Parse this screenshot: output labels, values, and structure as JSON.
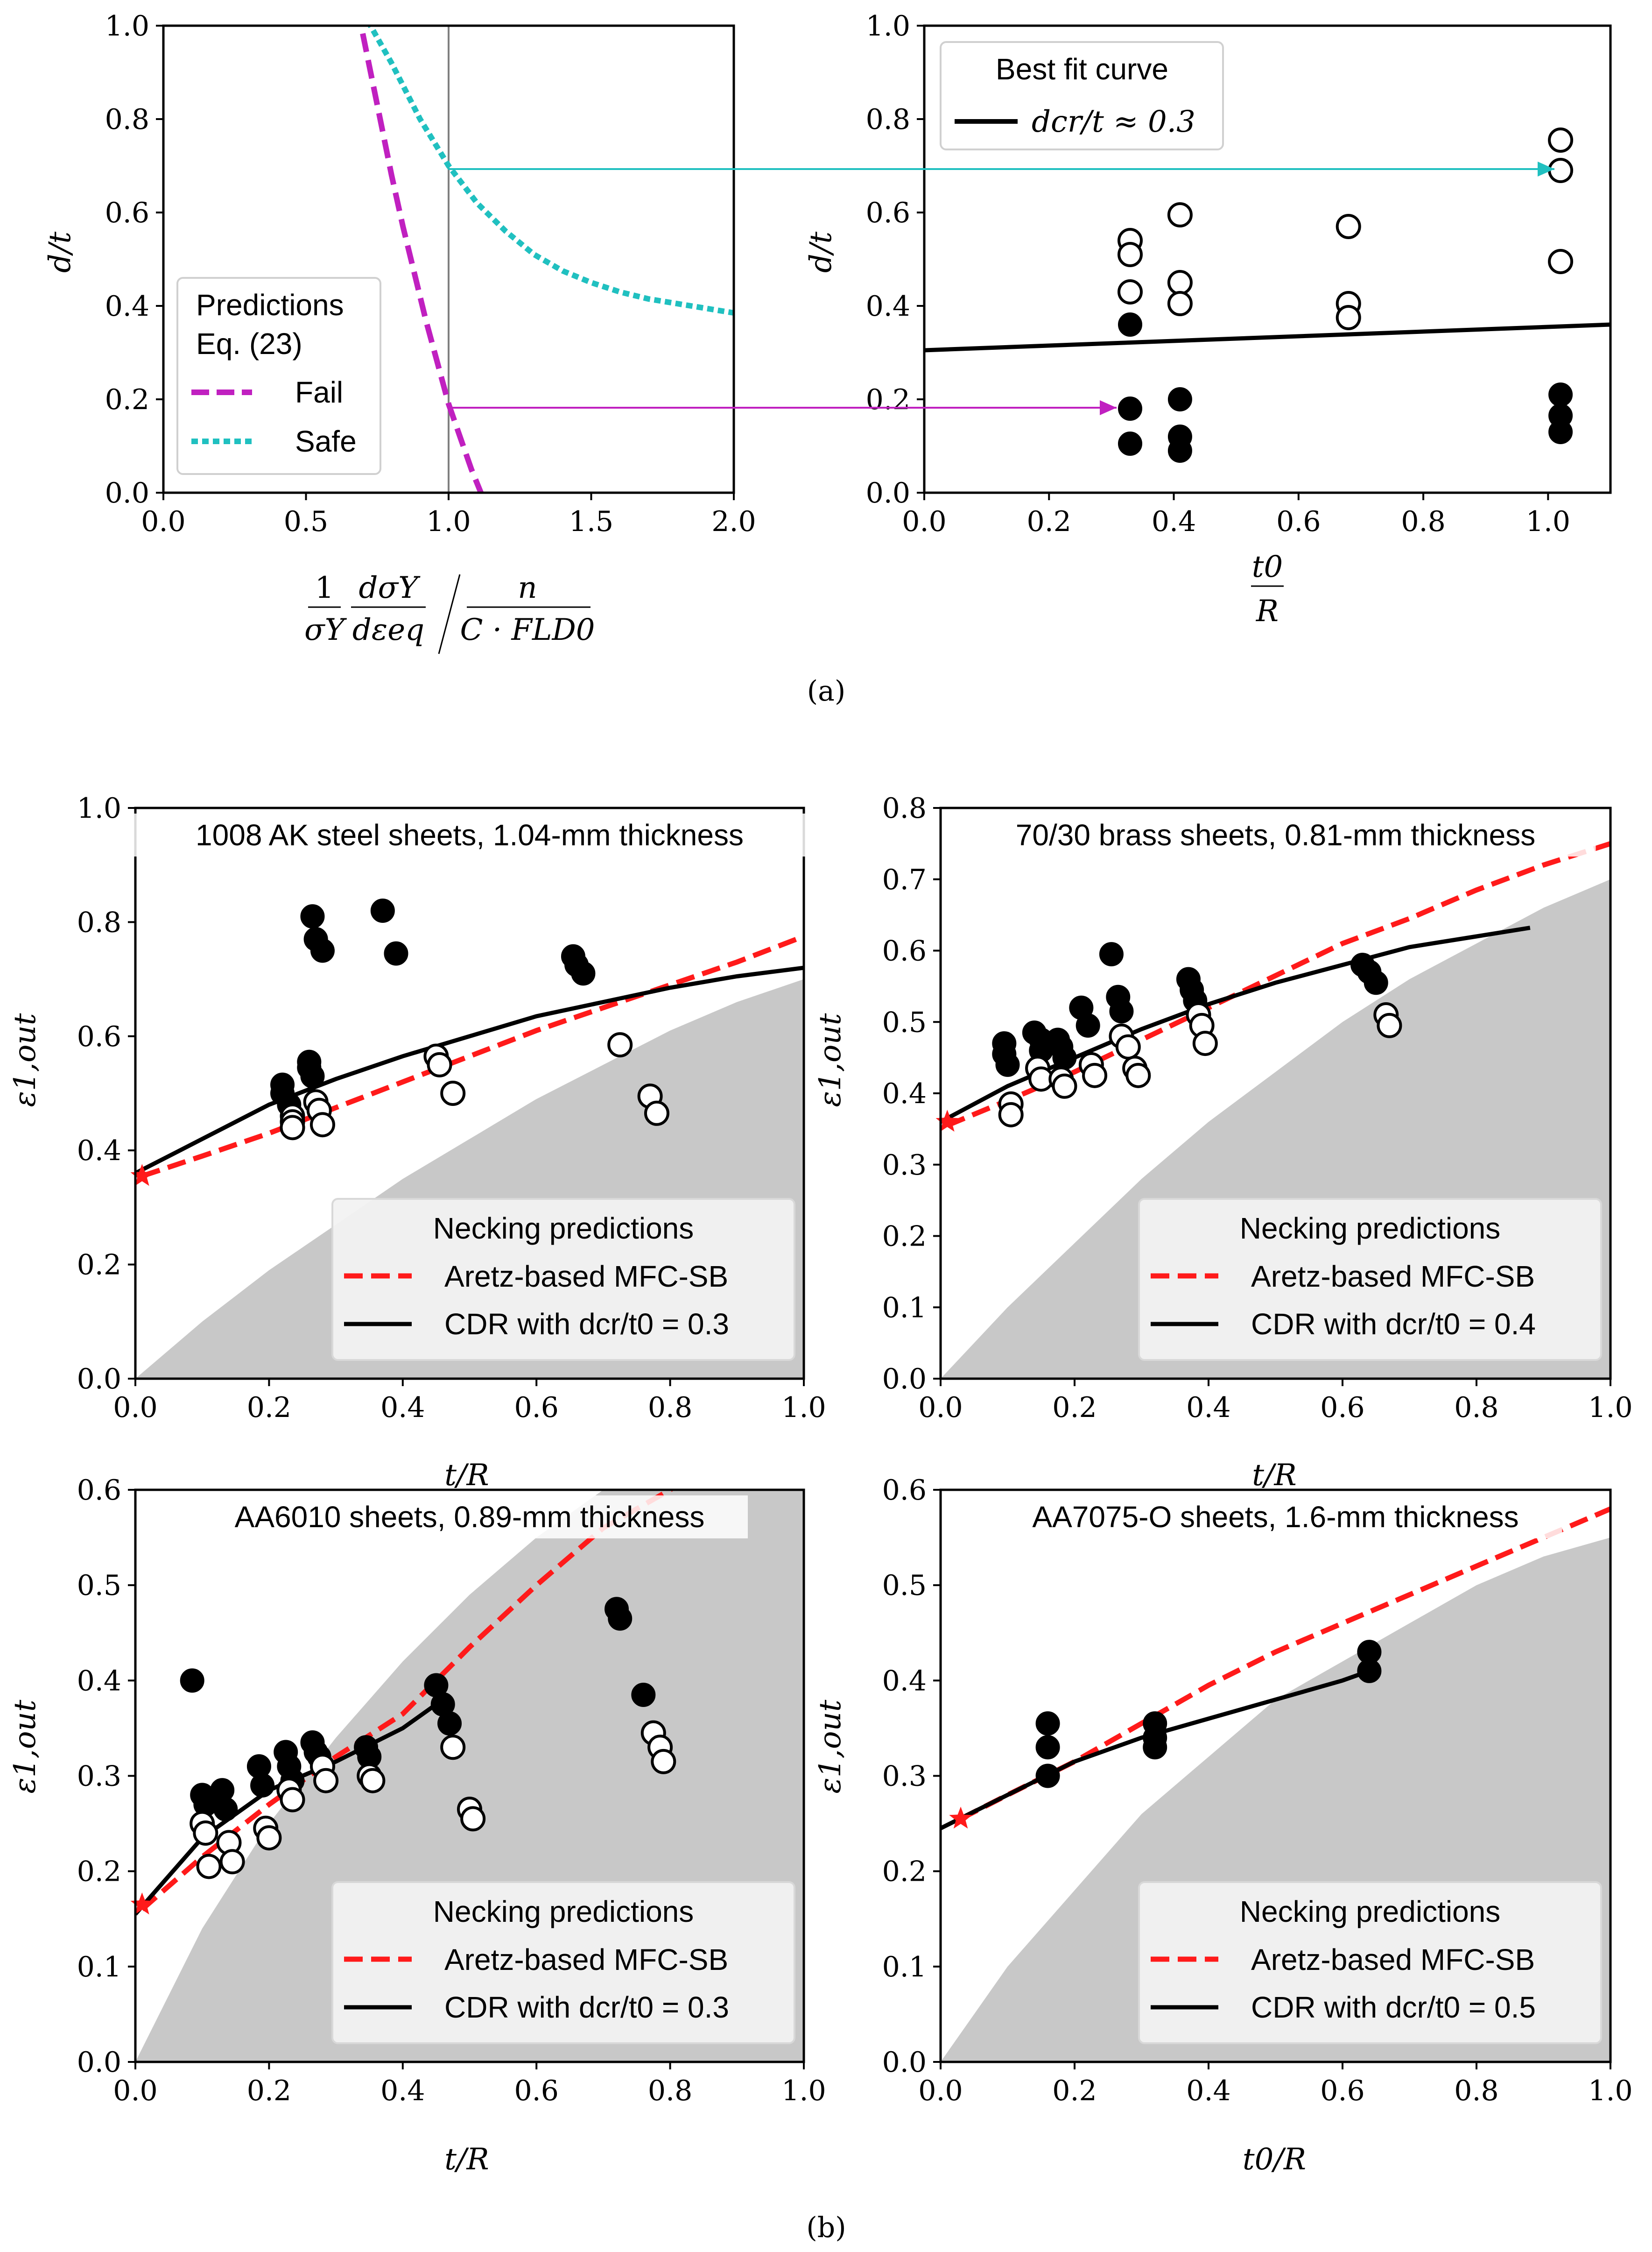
{
  "captions": {
    "a": "(a)",
    "b": "(b)"
  },
  "colors": {
    "fail": "#c020c0",
    "safe": "#20c0c0",
    "red": "#ff1a1a",
    "fill": "#c8c8c8"
  },
  "chart_data": [
    {
      "id": "a1",
      "type": "line",
      "xlabel": {
        "one": "1",
        "sigmaY": "σY",
        "dsig": "dσY",
        "deps": "dεeq",
        "n": "n",
        "den": "C · FLD0"
      },
      "ylabel": "d/t",
      "xlim": [
        0,
        2
      ],
      "ylim": [
        0,
        1
      ],
      "xticks": [
        "0.0",
        "0.5",
        "1.0",
        "1.5",
        "2.0"
      ],
      "yticks": [
        "0.0",
        "0.2",
        "0.4",
        "0.6",
        "0.8",
        "1.0"
      ],
      "series": [
        {
          "name": "Fail",
          "style": "dashed",
          "x": [
            0.68,
            0.72,
            0.76,
            0.8,
            0.84,
            0.88,
            0.92,
            0.96,
            1.0,
            1.04,
            1.08,
            1.12
          ],
          "y": [
            1.04,
            0.92,
            0.8,
            0.68,
            0.57,
            0.47,
            0.37,
            0.28,
            0.19,
            0.12,
            0.05,
            -0.01
          ]
        },
        {
          "name": "Safe",
          "style": "dotted",
          "x": [
            0.68,
            0.8,
            0.9,
            1.0,
            1.1,
            1.2,
            1.3,
            1.4,
            1.5,
            1.6,
            1.7,
            1.8,
            1.9,
            2.0
          ],
          "y": [
            1.05,
            0.92,
            0.8,
            0.7,
            0.62,
            0.56,
            0.51,
            0.475,
            0.45,
            0.43,
            0.415,
            0.405,
            0.395,
            0.385
          ]
        }
      ],
      "vline": 1.0,
      "legend": {
        "title": "Predictions",
        "subtitle": "Eq. (23)",
        "entries": [
          "Fail",
          "Safe"
        ]
      }
    },
    {
      "id": "a2",
      "type": "scatter",
      "xlabel": {
        "num": "t0",
        "den": "R"
      },
      "ylabel": "d/t",
      "xlim": [
        0,
        1.1
      ],
      "ylim": [
        0,
        1
      ],
      "xticks": [
        "0.0",
        "0.2",
        "0.4",
        "0.6",
        "0.8",
        "1.0"
      ],
      "yticks": [
        "0.0",
        "0.2",
        "0.4",
        "0.6",
        "0.8",
        "1.0"
      ],
      "fit": {
        "x": [
          0,
          1.1
        ],
        "y": [
          0.305,
          0.36
        ]
      },
      "failed": [
        [
          0.33,
          0.36
        ],
        [
          0.33,
          0.18
        ],
        [
          0.33,
          0.105
        ],
        [
          0.41,
          0.2
        ],
        [
          0.41,
          0.12
        ],
        [
          0.41,
          0.09
        ],
        [
          1.02,
          0.21
        ],
        [
          1.02,
          0.165
        ],
        [
          1.02,
          0.13
        ]
      ],
      "safe": [
        [
          0.33,
          0.54
        ],
        [
          0.33,
          0.51
        ],
        [
          0.33,
          0.43
        ],
        [
          0.41,
          0.595
        ],
        [
          0.41,
          0.45
        ],
        [
          0.41,
          0.405
        ],
        [
          0.68,
          0.57
        ],
        [
          0.68,
          0.405
        ],
        [
          0.68,
          0.375
        ],
        [
          1.02,
          0.755
        ],
        [
          1.02,
          0.69
        ],
        [
          1.02,
          0.495
        ]
      ],
      "legend": {
        "title": "Best fit curve",
        "entry": "dcr/t ≈ 0.3"
      }
    },
    {
      "id": "b1",
      "type": "scatter",
      "title": "1008 AK steel sheets, 1.04-mm thickness",
      "xlabel": "t/R",
      "ylabel": "ε1,out",
      "xlim": [
        0,
        1
      ],
      "ylim": [
        0,
        1
      ],
      "xticks": [
        "0.0",
        "0.2",
        "0.4",
        "0.6",
        "0.8",
        "1.0"
      ],
      "yticks": [
        "0.0",
        "0.2",
        "0.4",
        "0.6",
        "0.8",
        "1.0"
      ],
      "shade": {
        "x": [
          0,
          0.1,
          0.2,
          0.3,
          0.4,
          0.5,
          0.6,
          0.7,
          0.8,
          0.9,
          1.0
        ],
        "y": [
          0,
          0.1,
          0.19,
          0.27,
          0.35,
          0.42,
          0.49,
          0.55,
          0.61,
          0.66,
          0.7
        ]
      },
      "red": {
        "x": [
          0.01,
          0.1,
          0.2,
          0.3,
          0.4,
          0.5,
          0.6,
          0.7,
          0.8,
          0.9,
          1.0
        ],
        "y": [
          0.355,
          0.39,
          0.43,
          0.475,
          0.52,
          0.565,
          0.61,
          0.65,
          0.69,
          0.73,
          0.775
        ]
      },
      "black": {
        "x": [
          0.0,
          0.1,
          0.2,
          0.3,
          0.4,
          0.5,
          0.6,
          0.7,
          0.8,
          0.9,
          1.0
        ],
        "y": [
          0.36,
          0.42,
          0.48,
          0.525,
          0.565,
          0.6,
          0.635,
          0.66,
          0.685,
          0.705,
          0.72
        ]
      },
      "star": [
        0.01,
        0.355
      ],
      "failed": [
        [
          0.22,
          0.515
        ],
        [
          0.22,
          0.5
        ],
        [
          0.23,
          0.48
        ],
        [
          0.26,
          0.555
        ],
        [
          0.26,
          0.545
        ],
        [
          0.265,
          0.53
        ],
        [
          0.265,
          0.81
        ],
        [
          0.27,
          0.77
        ],
        [
          0.28,
          0.75
        ],
        [
          0.37,
          0.82
        ],
        [
          0.39,
          0.745
        ],
        [
          0.655,
          0.74
        ],
        [
          0.66,
          0.725
        ],
        [
          0.67,
          0.71
        ]
      ],
      "safe": [
        [
          0.235,
          0.46
        ],
        [
          0.235,
          0.45
        ],
        [
          0.235,
          0.44
        ],
        [
          0.27,
          0.485
        ],
        [
          0.275,
          0.47
        ],
        [
          0.28,
          0.445
        ],
        [
          0.45,
          0.565
        ],
        [
          0.455,
          0.55
        ],
        [
          0.475,
          0.5
        ],
        [
          0.725,
          0.585
        ],
        [
          0.77,
          0.495
        ],
        [
          0.78,
          0.465
        ]
      ],
      "legend": {
        "title": "Necking predictions",
        "red": "Aretz-based MFC-SB",
        "black": "CDR with dcr/t0 = 0.3"
      }
    },
    {
      "id": "b2",
      "type": "scatter",
      "title": "70/30 brass sheets, 0.81-mm thickness",
      "xlabel": "t/R",
      "ylabel": "ε1,out",
      "xlim": [
        0,
        1
      ],
      "ylim": [
        0,
        0.8
      ],
      "xticks": [
        "0.0",
        "0.2",
        "0.4",
        "0.6",
        "0.8",
        "1.0"
      ],
      "yticks": [
        "0.0",
        "0.1",
        "0.2",
        "0.3",
        "0.4",
        "0.5",
        "0.6",
        "0.7",
        "0.8"
      ],
      "shade": {
        "x": [
          0,
          0.1,
          0.2,
          0.3,
          0.4,
          0.5,
          0.6,
          0.7,
          0.8,
          0.9,
          1.0
        ],
        "y": [
          0,
          0.1,
          0.19,
          0.28,
          0.36,
          0.43,
          0.5,
          0.56,
          0.61,
          0.66,
          0.7
        ]
      },
      "red": {
        "x": [
          0.01,
          0.1,
          0.2,
          0.3,
          0.4,
          0.5,
          0.6,
          0.7,
          0.8,
          0.9,
          1.0
        ],
        "y": [
          0.355,
          0.39,
          0.43,
          0.475,
          0.52,
          0.565,
          0.61,
          0.645,
          0.685,
          0.72,
          0.75
        ]
      },
      "black": {
        "x": [
          0.0,
          0.1,
          0.2,
          0.3,
          0.4,
          0.5,
          0.6,
          0.7,
          0.8,
          0.88
        ],
        "y": [
          0.36,
          0.41,
          0.45,
          0.49,
          0.525,
          0.555,
          0.58,
          0.605,
          0.62,
          0.632
        ]
      },
      "star": [
        0.01,
        0.36
      ],
      "failed": [
        [
          0.095,
          0.47
        ],
        [
          0.095,
          0.455
        ],
        [
          0.1,
          0.44
        ],
        [
          0.14,
          0.485
        ],
        [
          0.15,
          0.475
        ],
        [
          0.15,
          0.46
        ],
        [
          0.175,
          0.475
        ],
        [
          0.18,
          0.465
        ],
        [
          0.185,
          0.45
        ],
        [
          0.21,
          0.52
        ],
        [
          0.22,
          0.495
        ],
        [
          0.255,
          0.595
        ],
        [
          0.265,
          0.535
        ],
        [
          0.27,
          0.515
        ],
        [
          0.37,
          0.56
        ],
        [
          0.375,
          0.545
        ],
        [
          0.38,
          0.53
        ],
        [
          0.63,
          0.58
        ],
        [
          0.64,
          0.57
        ],
        [
          0.65,
          0.555
        ]
      ],
      "safe": [
        [
          0.105,
          0.385
        ],
        [
          0.105,
          0.37
        ],
        [
          0.145,
          0.435
        ],
        [
          0.15,
          0.42
        ],
        [
          0.18,
          0.42
        ],
        [
          0.185,
          0.41
        ],
        [
          0.225,
          0.44
        ],
        [
          0.23,
          0.425
        ],
        [
          0.27,
          0.48
        ],
        [
          0.28,
          0.465
        ],
        [
          0.29,
          0.435
        ],
        [
          0.295,
          0.425
        ],
        [
          0.385,
          0.51
        ],
        [
          0.39,
          0.495
        ],
        [
          0.395,
          0.47
        ],
        [
          0.665,
          0.51
        ],
        [
          0.67,
          0.495
        ]
      ],
      "legend": {
        "title": "Necking predictions",
        "red": "Aretz-based MFC-SB",
        "black": "CDR with dcr/t0 = 0.4"
      }
    },
    {
      "id": "b3",
      "type": "scatter",
      "title": "AA6010 sheets, 0.89-mm thickness",
      "xlabel": "t/R",
      "ylabel": "ε1,out",
      "xlim": [
        0,
        1
      ],
      "ylim": [
        0,
        0.6
      ],
      "xticks": [
        "0.0",
        "0.2",
        "0.4",
        "0.6",
        "0.8",
        "1.0"
      ],
      "yticks": [
        "0.0",
        "0.1",
        "0.2",
        "0.3",
        "0.4",
        "0.5",
        "0.6"
      ],
      "shade": {
        "x": [
          0,
          0.1,
          0.2,
          0.3,
          0.4,
          0.5,
          0.6,
          0.7,
          0.8,
          0.9,
          1.0
        ],
        "y": [
          0,
          0.14,
          0.25,
          0.34,
          0.42,
          0.49,
          0.55,
          0.6,
          0.6,
          0.6,
          0.6
        ]
      },
      "red": {
        "x": [
          0.01,
          0.1,
          0.2,
          0.3,
          0.4,
          0.5,
          0.6,
          0.7,
          0.8,
          0.82
        ],
        "y": [
          0.16,
          0.215,
          0.27,
          0.32,
          0.365,
          0.435,
          0.5,
          0.56,
          0.6,
          0.61
        ]
      },
      "black": {
        "x": [
          0.0,
          0.1,
          0.2,
          0.3,
          0.4,
          0.46
        ],
        "y": [
          0.155,
          0.235,
          0.285,
          0.315,
          0.35,
          0.38
        ]
      },
      "star": [
        0.01,
        0.165
      ],
      "failed": [
        [
          0.085,
          0.4
        ],
        [
          0.1,
          0.28
        ],
        [
          0.105,
          0.27
        ],
        [
          0.13,
          0.285
        ],
        [
          0.135,
          0.265
        ],
        [
          0.185,
          0.31
        ],
        [
          0.19,
          0.29
        ],
        [
          0.225,
          0.325
        ],
        [
          0.23,
          0.31
        ],
        [
          0.235,
          0.295
        ],
        [
          0.265,
          0.335
        ],
        [
          0.27,
          0.325
        ],
        [
          0.275,
          0.32
        ],
        [
          0.345,
          0.33
        ],
        [
          0.35,
          0.32
        ],
        [
          0.45,
          0.395
        ],
        [
          0.46,
          0.375
        ],
        [
          0.47,
          0.355
        ],
        [
          0.72,
          0.475
        ],
        [
          0.725,
          0.465
        ],
        [
          0.76,
          0.385
        ]
      ],
      "safe": [
        [
          0.1,
          0.25
        ],
        [
          0.105,
          0.24
        ],
        [
          0.11,
          0.205
        ],
        [
          0.14,
          0.23
        ],
        [
          0.145,
          0.21
        ],
        [
          0.195,
          0.245
        ],
        [
          0.2,
          0.235
        ],
        [
          0.23,
          0.285
        ],
        [
          0.235,
          0.275
        ],
        [
          0.28,
          0.31
        ],
        [
          0.285,
          0.295
        ],
        [
          0.35,
          0.3
        ],
        [
          0.355,
          0.295
        ],
        [
          0.475,
          0.33
        ],
        [
          0.5,
          0.265
        ],
        [
          0.505,
          0.255
        ],
        [
          0.775,
          0.345
        ],
        [
          0.785,
          0.33
        ],
        [
          0.79,
          0.315
        ]
      ],
      "legend": {
        "title": "Necking predictions",
        "red": "Aretz-based MFC-SB",
        "black": "CDR with dcr/t0 = 0.3"
      }
    },
    {
      "id": "b4",
      "type": "scatter",
      "title": "AA7075-O sheets, 1.6-mm thickness",
      "xlabel": "t0/R",
      "ylabel": "ε1,out",
      "xlim": [
        0,
        1
      ],
      "ylim": [
        0,
        0.6
      ],
      "xticks": [
        "0.0",
        "0.2",
        "0.4",
        "0.6",
        "0.8",
        "1.0"
      ],
      "yticks": [
        "0.0",
        "0.1",
        "0.2",
        "0.3",
        "0.4",
        "0.5",
        "0.6"
      ],
      "shade": {
        "x": [
          0,
          0.1,
          0.2,
          0.3,
          0.4,
          0.5,
          0.6,
          0.7,
          0.8,
          0.9,
          1.0
        ],
        "y": [
          0,
          0.1,
          0.18,
          0.26,
          0.32,
          0.38,
          0.42,
          0.46,
          0.5,
          0.53,
          0.55
        ]
      },
      "red": {
        "x": [
          0.03,
          0.1,
          0.2,
          0.3,
          0.4,
          0.5,
          0.6,
          0.7,
          0.8,
          0.9,
          1.0
        ],
        "y": [
          0.255,
          0.28,
          0.315,
          0.355,
          0.395,
          0.43,
          0.46,
          0.49,
          0.52,
          0.55,
          0.58
        ]
      },
      "black": {
        "x": [
          0.0,
          0.1,
          0.2,
          0.3,
          0.4,
          0.5,
          0.6,
          0.64
        ],
        "y": [
          0.245,
          0.28,
          0.315,
          0.34,
          0.36,
          0.38,
          0.4,
          0.41
        ]
      },
      "star": [
        0.03,
        0.255
      ],
      "failed": [
        [
          0.16,
          0.355
        ],
        [
          0.16,
          0.33
        ],
        [
          0.16,
          0.3
        ],
        [
          0.32,
          0.355
        ],
        [
          0.32,
          0.34
        ],
        [
          0.32,
          0.33
        ],
        [
          0.64,
          0.43
        ],
        [
          0.64,
          0.41
        ]
      ],
      "safe": [],
      "legend": {
        "title": "Necking predictions",
        "red": "Aretz-based MFC-SB",
        "black": "CDR with dcr/t0 = 0.5"
      }
    }
  ]
}
